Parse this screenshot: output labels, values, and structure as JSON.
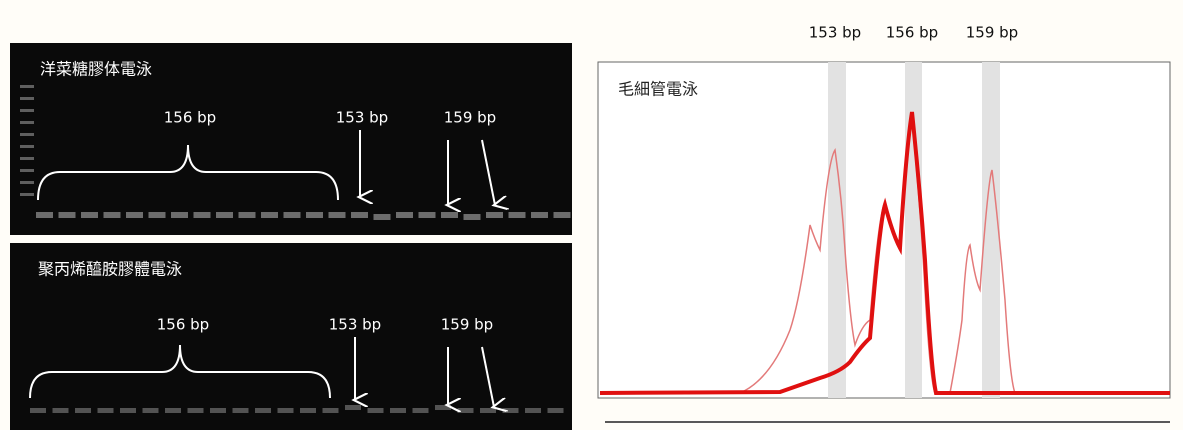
{
  "top_gel": {
    "title": "洋菜糖膠体電泳",
    "labels": [
      "156 bp",
      "153 bp",
      "159 bp"
    ]
  },
  "bottom_gel": {
    "title": "聚丙烯醯胺膠體電泳",
    "labels": [
      "156 bp",
      "153 bp",
      "159 bp"
    ]
  },
  "capillary": {
    "title": "毛細管電泳",
    "peak_labels": [
      "153 bp",
      "156 bp",
      "159 bp"
    ]
  }
}
